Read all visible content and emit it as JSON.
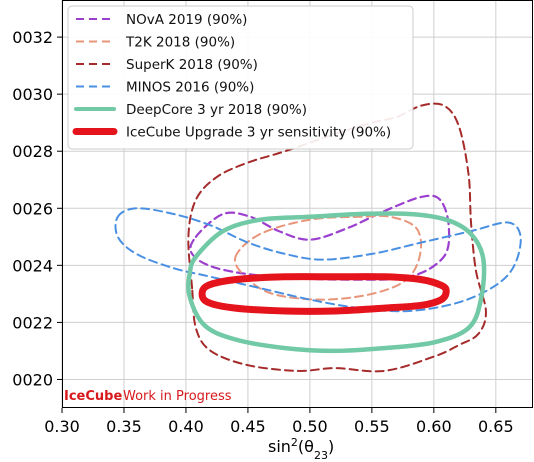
{
  "chart_data": {
    "type": "line",
    "xlabel_main": "sin",
    "xlabel_sup": "2",
    "xlabel_rest": "(θ",
    "xlabel_sub": "23",
    "xlabel_close": ")",
    "xlim": [
      0.3,
      0.68
    ],
    "ylim": [
      0.0019,
      0.00333
    ],
    "xticks": [
      0.3,
      0.35,
      0.4,
      0.45,
      0.5,
      0.55,
      0.6,
      0.65
    ],
    "xtick_labels": [
      "0.30",
      "0.35",
      "0.40",
      "0.45",
      "0.50",
      "0.55",
      "0.60",
      "0.65"
    ],
    "yticks": [
      0.002,
      0.0022,
      0.0024,
      0.0026,
      0.0028,
      0.003,
      0.0032
    ],
    "ytick_labels": [
      "0020",
      "0022",
      "0024",
      "0026",
      "0028",
      "0030",
      "0032"
    ],
    "grid": true,
    "legend_position": "top-left",
    "watermark": {
      "brand": "IceCube",
      "text": "Work in Progress"
    },
    "series": [
      {
        "name": "NOvA 2019 (90%)",
        "color": "#9b3fcf",
        "dash": "8,5",
        "width": 2.2,
        "legend_width": 2,
        "points": [
          [
            0.408,
            0.0025
          ],
          [
            0.43,
            0.00258
          ],
          [
            0.452,
            0.00257
          ],
          [
            0.475,
            0.00252
          ],
          [
            0.5,
            0.00249
          ],
          [
            0.53,
            0.00253
          ],
          [
            0.56,
            0.00259
          ],
          [
            0.59,
            0.00264
          ],
          [
            0.605,
            0.00263
          ],
          [
            0.612,
            0.00254
          ],
          [
            0.608,
            0.00243
          ],
          [
            0.58,
            0.00236
          ],
          [
            0.53,
            0.00235
          ],
          [
            0.47,
            0.00236
          ],
          [
            0.425,
            0.00239
          ],
          [
            0.405,
            0.00244
          ],
          [
            0.408,
            0.0025
          ]
        ]
      },
      {
        "name": "T2K 2018 (90%)",
        "color": "#e8957a",
        "dash": "8,5",
        "width": 2,
        "legend_width": 2,
        "points": [
          [
            0.44,
            0.00243
          ],
          [
            0.46,
            0.00251
          ],
          [
            0.5,
            0.00256
          ],
          [
            0.54,
            0.00257
          ],
          [
            0.565,
            0.00257
          ],
          [
            0.586,
            0.00253
          ],
          [
            0.589,
            0.00244
          ],
          [
            0.578,
            0.00235
          ],
          [
            0.55,
            0.0023
          ],
          [
            0.51,
            0.00228
          ],
          [
            0.47,
            0.0023
          ],
          [
            0.448,
            0.00236
          ],
          [
            0.44,
            0.00243
          ]
        ]
      },
      {
        "name": "SuperK 2018 (90%)",
        "color": "#a52a2a",
        "dash": "8,5",
        "width": 2,
        "legend_width": 2,
        "points": [
          [
            0.405,
            0.00232
          ],
          [
            0.402,
            0.0025
          ],
          [
            0.408,
            0.00263
          ],
          [
            0.425,
            0.00271
          ],
          [
            0.45,
            0.00276
          ],
          [
            0.48,
            0.0028
          ],
          [
            0.52,
            0.00286
          ],
          [
            0.55,
            0.0029
          ],
          [
            0.57,
            0.00292
          ],
          [
            0.59,
            0.00296
          ],
          [
            0.608,
            0.00296
          ],
          [
            0.62,
            0.00289
          ],
          [
            0.628,
            0.00272
          ],
          [
            0.63,
            0.00255
          ],
          [
            0.634,
            0.00238
          ],
          [
            0.642,
            0.00224
          ],
          [
            0.636,
            0.00216
          ],
          [
            0.62,
            0.00212
          ],
          [
            0.6,
            0.00208
          ],
          [
            0.56,
            0.00203
          ],
          [
            0.52,
            0.00204
          ],
          [
            0.49,
            0.00203
          ],
          [
            0.45,
            0.00205
          ],
          [
            0.42,
            0.0021
          ],
          [
            0.408,
            0.00218
          ],
          [
            0.405,
            0.00232
          ]
        ]
      },
      {
        "name": "MINOS 2016 (90%)",
        "color": "#4a90e2",
        "dash": "8,5",
        "width": 2,
        "legend_width": 2,
        "points": [
          [
            0.345,
            0.00257
          ],
          [
            0.36,
            0.0026
          ],
          [
            0.39,
            0.00258
          ],
          [
            0.42,
            0.00254
          ],
          [
            0.45,
            0.00248
          ],
          [
            0.48,
            0.00244
          ],
          [
            0.51,
            0.00242
          ],
          [
            0.55,
            0.00244
          ],
          [
            0.59,
            0.00248
          ],
          [
            0.63,
            0.00252
          ],
          [
            0.66,
            0.00255
          ],
          [
            0.67,
            0.0025
          ],
          [
            0.665,
            0.0024
          ],
          [
            0.65,
            0.00233
          ],
          [
            0.62,
            0.00227
          ],
          [
            0.58,
            0.00224
          ],
          [
            0.54,
            0.00225
          ],
          [
            0.5,
            0.00228
          ],
          [
            0.46,
            0.00232
          ],
          [
            0.42,
            0.00236
          ],
          [
            0.39,
            0.00239
          ],
          [
            0.36,
            0.00244
          ],
          [
            0.345,
            0.0025
          ],
          [
            0.345,
            0.00257
          ]
        ]
      },
      {
        "name": "DeepCore 3 yr 2018 (90%)",
        "color": "#72c9a6",
        "dash": "",
        "width": 4.5,
        "legend_width": 4,
        "points": [
          [
            0.408,
            0.00243
          ],
          [
            0.43,
            0.00252
          ],
          [
            0.46,
            0.00256
          ],
          [
            0.5,
            0.00257
          ],
          [
            0.54,
            0.00258
          ],
          [
            0.58,
            0.00258
          ],
          [
            0.61,
            0.00256
          ],
          [
            0.63,
            0.00251
          ],
          [
            0.64,
            0.00242
          ],
          [
            0.638,
            0.00228
          ],
          [
            0.628,
            0.00218
          ],
          [
            0.6,
            0.00213
          ],
          [
            0.56,
            0.00211
          ],
          [
            0.52,
            0.0021
          ],
          [
            0.48,
            0.00211
          ],
          [
            0.44,
            0.00214
          ],
          [
            0.415,
            0.00219
          ],
          [
            0.403,
            0.00229
          ],
          [
            0.403,
            0.00237
          ],
          [
            0.408,
            0.00243
          ]
        ]
      },
      {
        "name": "IceCube Upgrade 3 yr sensitivity (90%)",
        "color": "#e5141c",
        "dash": "",
        "width": 7,
        "legend_width": 7,
        "points": [
          [
            0.413,
            0.0023
          ],
          [
            0.418,
            0.00233
          ],
          [
            0.44,
            0.00235
          ],
          [
            0.48,
            0.00236
          ],
          [
            0.52,
            0.00236
          ],
          [
            0.56,
            0.00236
          ],
          [
            0.59,
            0.00235
          ],
          [
            0.606,
            0.00233
          ],
          [
            0.61,
            0.00231
          ],
          [
            0.606,
            0.00228
          ],
          [
            0.59,
            0.00226
          ],
          [
            0.56,
            0.00225
          ],
          [
            0.52,
            0.00224
          ],
          [
            0.48,
            0.00224
          ],
          [
            0.44,
            0.00225
          ],
          [
            0.418,
            0.00227
          ],
          [
            0.413,
            0.0023
          ]
        ]
      }
    ]
  }
}
